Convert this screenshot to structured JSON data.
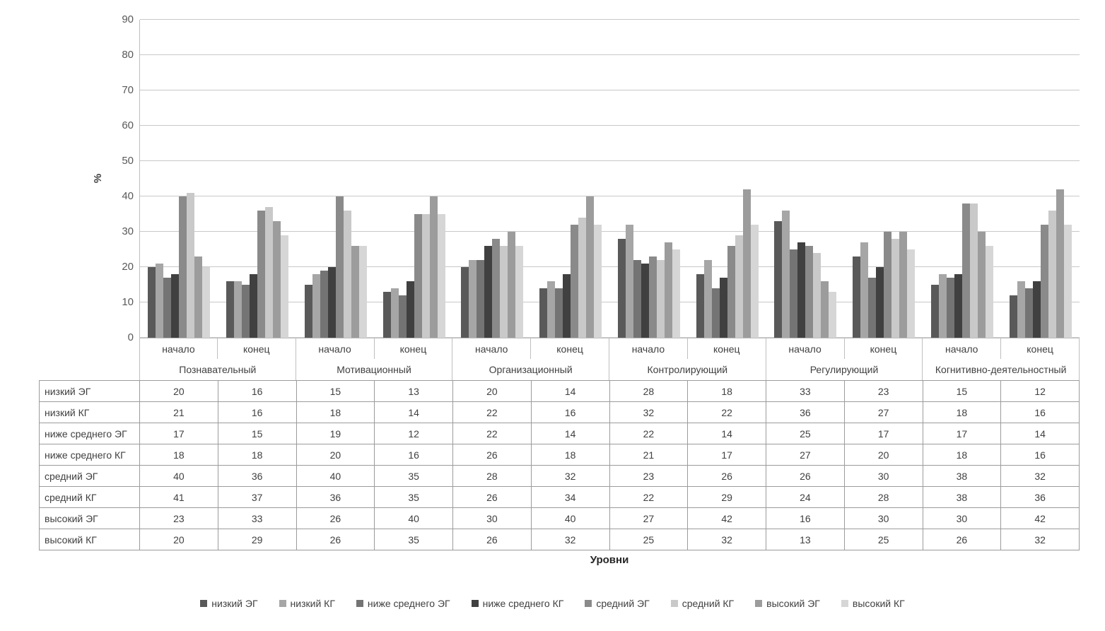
{
  "chart_data": {
    "type": "bar",
    "title": "",
    "ylabel": "%",
    "xlabel": "Уровни",
    "ylim": [
      0,
      90
    ],
    "yticks": [
      0,
      10,
      20,
      30,
      40,
      50,
      60,
      70,
      80,
      90
    ],
    "grid": true,
    "legend_position": "bottom",
    "groups": [
      "Познавательный",
      "Мотивационный",
      "Организационный",
      "Контролирующий",
      "Регулирующий",
      "Когнитивно-деятельностный"
    ],
    "phases": [
      "начало",
      "конец"
    ],
    "column_order_note": "values arrays are ordered: for each group in groups, начало then конец",
    "series": [
      {
        "name": "низкий ЭГ",
        "color": "#595959",
        "values": [
          20,
          16,
          15,
          13,
          20,
          14,
          28,
          18,
          33,
          23,
          15,
          12
        ]
      },
      {
        "name": "низкий КГ",
        "color": "#a6a6a6",
        "values": [
          21,
          16,
          18,
          14,
          22,
          16,
          32,
          22,
          36,
          27,
          18,
          16
        ]
      },
      {
        "name": "ниже среднего ЭГ",
        "color": "#747474",
        "values": [
          17,
          15,
          19,
          12,
          22,
          14,
          22,
          14,
          25,
          17,
          17,
          14
        ]
      },
      {
        "name": "ниже среднего КГ",
        "color": "#404040",
        "values": [
          18,
          18,
          20,
          16,
          26,
          18,
          21,
          17,
          27,
          20,
          18,
          16
        ]
      },
      {
        "name": "средний ЭГ",
        "color": "#8a8a8a",
        "values": [
          40,
          36,
          40,
          35,
          28,
          32,
          23,
          26,
          26,
          30,
          38,
          32
        ]
      },
      {
        "name": "средний КГ",
        "color": "#c9c9c9",
        "values": [
          41,
          37,
          36,
          35,
          26,
          34,
          22,
          29,
          24,
          28,
          38,
          36
        ]
      },
      {
        "name": "высокий ЭГ",
        "color": "#9c9c9c",
        "values": [
          23,
          33,
          26,
          40,
          30,
          40,
          27,
          42,
          16,
          30,
          30,
          42
        ]
      },
      {
        "name": "высокий КГ",
        "color": "#d6d6d6",
        "values": [
          20,
          29,
          26,
          35,
          26,
          32,
          25,
          32,
          13,
          25,
          26,
          32
        ]
      }
    ]
  },
  "colors": {
    "gridline": "#c8c8c8",
    "axis": "#bfbfbf",
    "table_border": "#9b9b9b",
    "text": "#404040"
  }
}
